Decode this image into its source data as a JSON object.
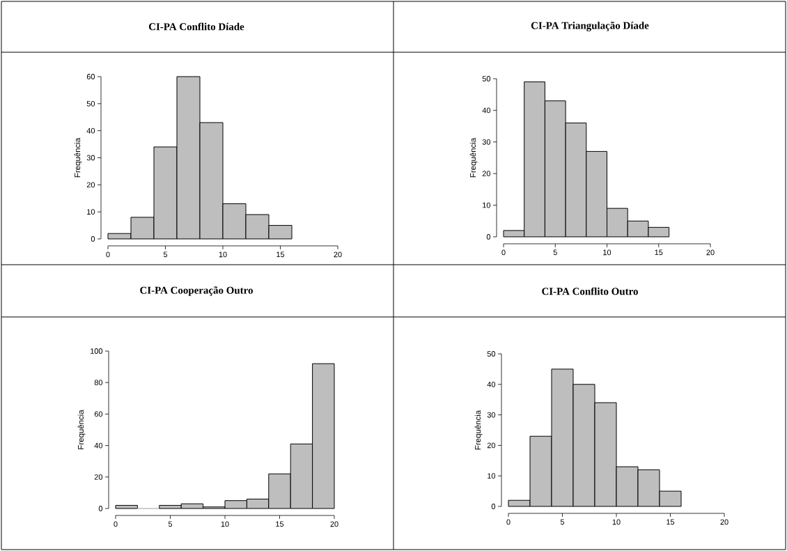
{
  "chart_data": [
    {
      "type": "histogram",
      "title": "CI-PA Conflito Díade",
      "ylabel": "Frequência",
      "color": "#bebebe",
      "bins": [
        0,
        2,
        4,
        6,
        8,
        10,
        12,
        14,
        16
      ],
      "values": [
        2,
        8,
        34,
        60,
        43,
        13,
        9,
        5
      ],
      "xlim": [
        0,
        20
      ],
      "ylim": [
        0,
        60
      ],
      "xticks": [
        0,
        5,
        10,
        15,
        20
      ],
      "yticks": [
        0,
        10,
        20,
        30,
        40,
        50,
        60
      ]
    },
    {
      "type": "histogram",
      "title": "CI-PA Triangulação Díade",
      "ylabel": "Frequência",
      "color": "#bebebe",
      "bins": [
        0,
        2,
        4,
        6,
        8,
        10,
        12,
        14,
        16
      ],
      "values": [
        2,
        49,
        43,
        36,
        27,
        9,
        5,
        3
      ],
      "xlim": [
        0,
        20
      ],
      "ylim": [
        0,
        50
      ],
      "xticks": [
        0,
        5,
        10,
        15,
        20
      ],
      "yticks": [
        0,
        10,
        20,
        30,
        40,
        50
      ]
    },
    {
      "type": "histogram",
      "title": "CI-PA Cooperação Outro",
      "ylabel": "Frequência",
      "color": "#bebebe",
      "bins": [
        0,
        2,
        4,
        6,
        8,
        10,
        12,
        14,
        16,
        18,
        20
      ],
      "values": [
        2,
        0,
        2,
        3,
        1,
        5,
        6,
        22,
        41,
        92
      ],
      "xlim": [
        0,
        20
      ],
      "ylim": [
        0,
        100
      ],
      "xticks": [
        0,
        5,
        10,
        15,
        20
      ],
      "yticks": [
        0,
        20,
        40,
        60,
        80,
        100
      ]
    },
    {
      "type": "histogram",
      "title": "CI-PA Conflito Outro",
      "ylabel": "Frequência",
      "color": "#bebebe",
      "bins": [
        0,
        2,
        4,
        6,
        8,
        10,
        12,
        14,
        16
      ],
      "values": [
        2,
        23,
        45,
        40,
        34,
        13,
        12,
        5
      ],
      "xlim": [
        0,
        20
      ],
      "ylim": [
        0,
        50
      ],
      "xticks": [
        0,
        5,
        10,
        15,
        20
      ],
      "yticks": [
        0,
        10,
        20,
        30,
        40,
        50
      ]
    }
  ]
}
